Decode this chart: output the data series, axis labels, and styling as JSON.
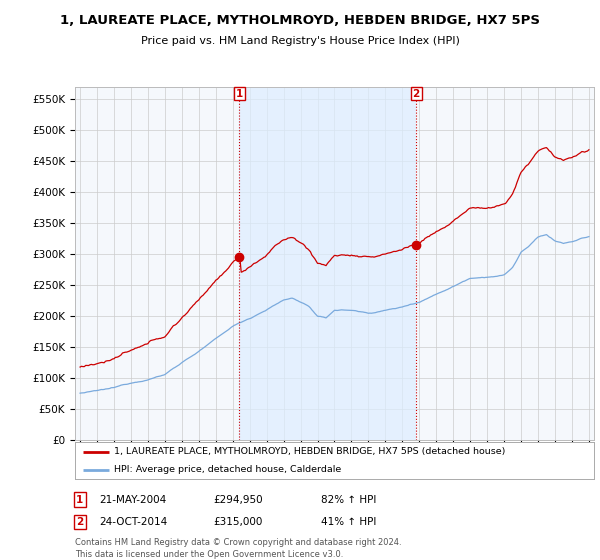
{
  "title": "1, LAUREATE PLACE, MYTHOLMROYD, HEBDEN BRIDGE, HX7 5PS",
  "subtitle": "Price paid vs. HM Land Registry's House Price Index (HPI)",
  "ylim": [
    0,
    570000
  ],
  "yticks": [
    0,
    50000,
    100000,
    150000,
    200000,
    250000,
    300000,
    350000,
    400000,
    450000,
    500000,
    550000
  ],
  "ytick_labels": [
    "£0",
    "£50K",
    "£100K",
    "£150K",
    "£200K",
    "£250K",
    "£300K",
    "£350K",
    "£400K",
    "£450K",
    "£500K",
    "£550K"
  ],
  "xlim": [
    1994.7,
    2025.3
  ],
  "sale1_date": 2004.38,
  "sale1_price": 294950,
  "sale1_label": "1",
  "sale1_text": "21-MAY-2004",
  "sale1_price_text": "£294,950",
  "sale1_hpi": "82% ↑ HPI",
  "sale2_date": 2014.81,
  "sale2_price": 315000,
  "sale2_label": "2",
  "sale2_text": "24-OCT-2014",
  "sale2_price_text": "£315,000",
  "sale2_hpi": "41% ↑ HPI",
  "legend_line1": "1, LAUREATE PLACE, MYTHOLMROYD, HEBDEN BRIDGE, HX7 5PS (detached house)",
  "legend_line2": "HPI: Average price, detached house, Calderdale",
  "footer": "Contains HM Land Registry data © Crown copyright and database right 2024.\nThis data is licensed under the Open Government Licence v3.0.",
  "house_color": "#cc0000",
  "hpi_color": "#7aaadd",
  "shade_color": "#ddeeff",
  "background_color": "#ffffff",
  "plot_bg": "#f5f8fc",
  "grid_color": "#cccccc"
}
